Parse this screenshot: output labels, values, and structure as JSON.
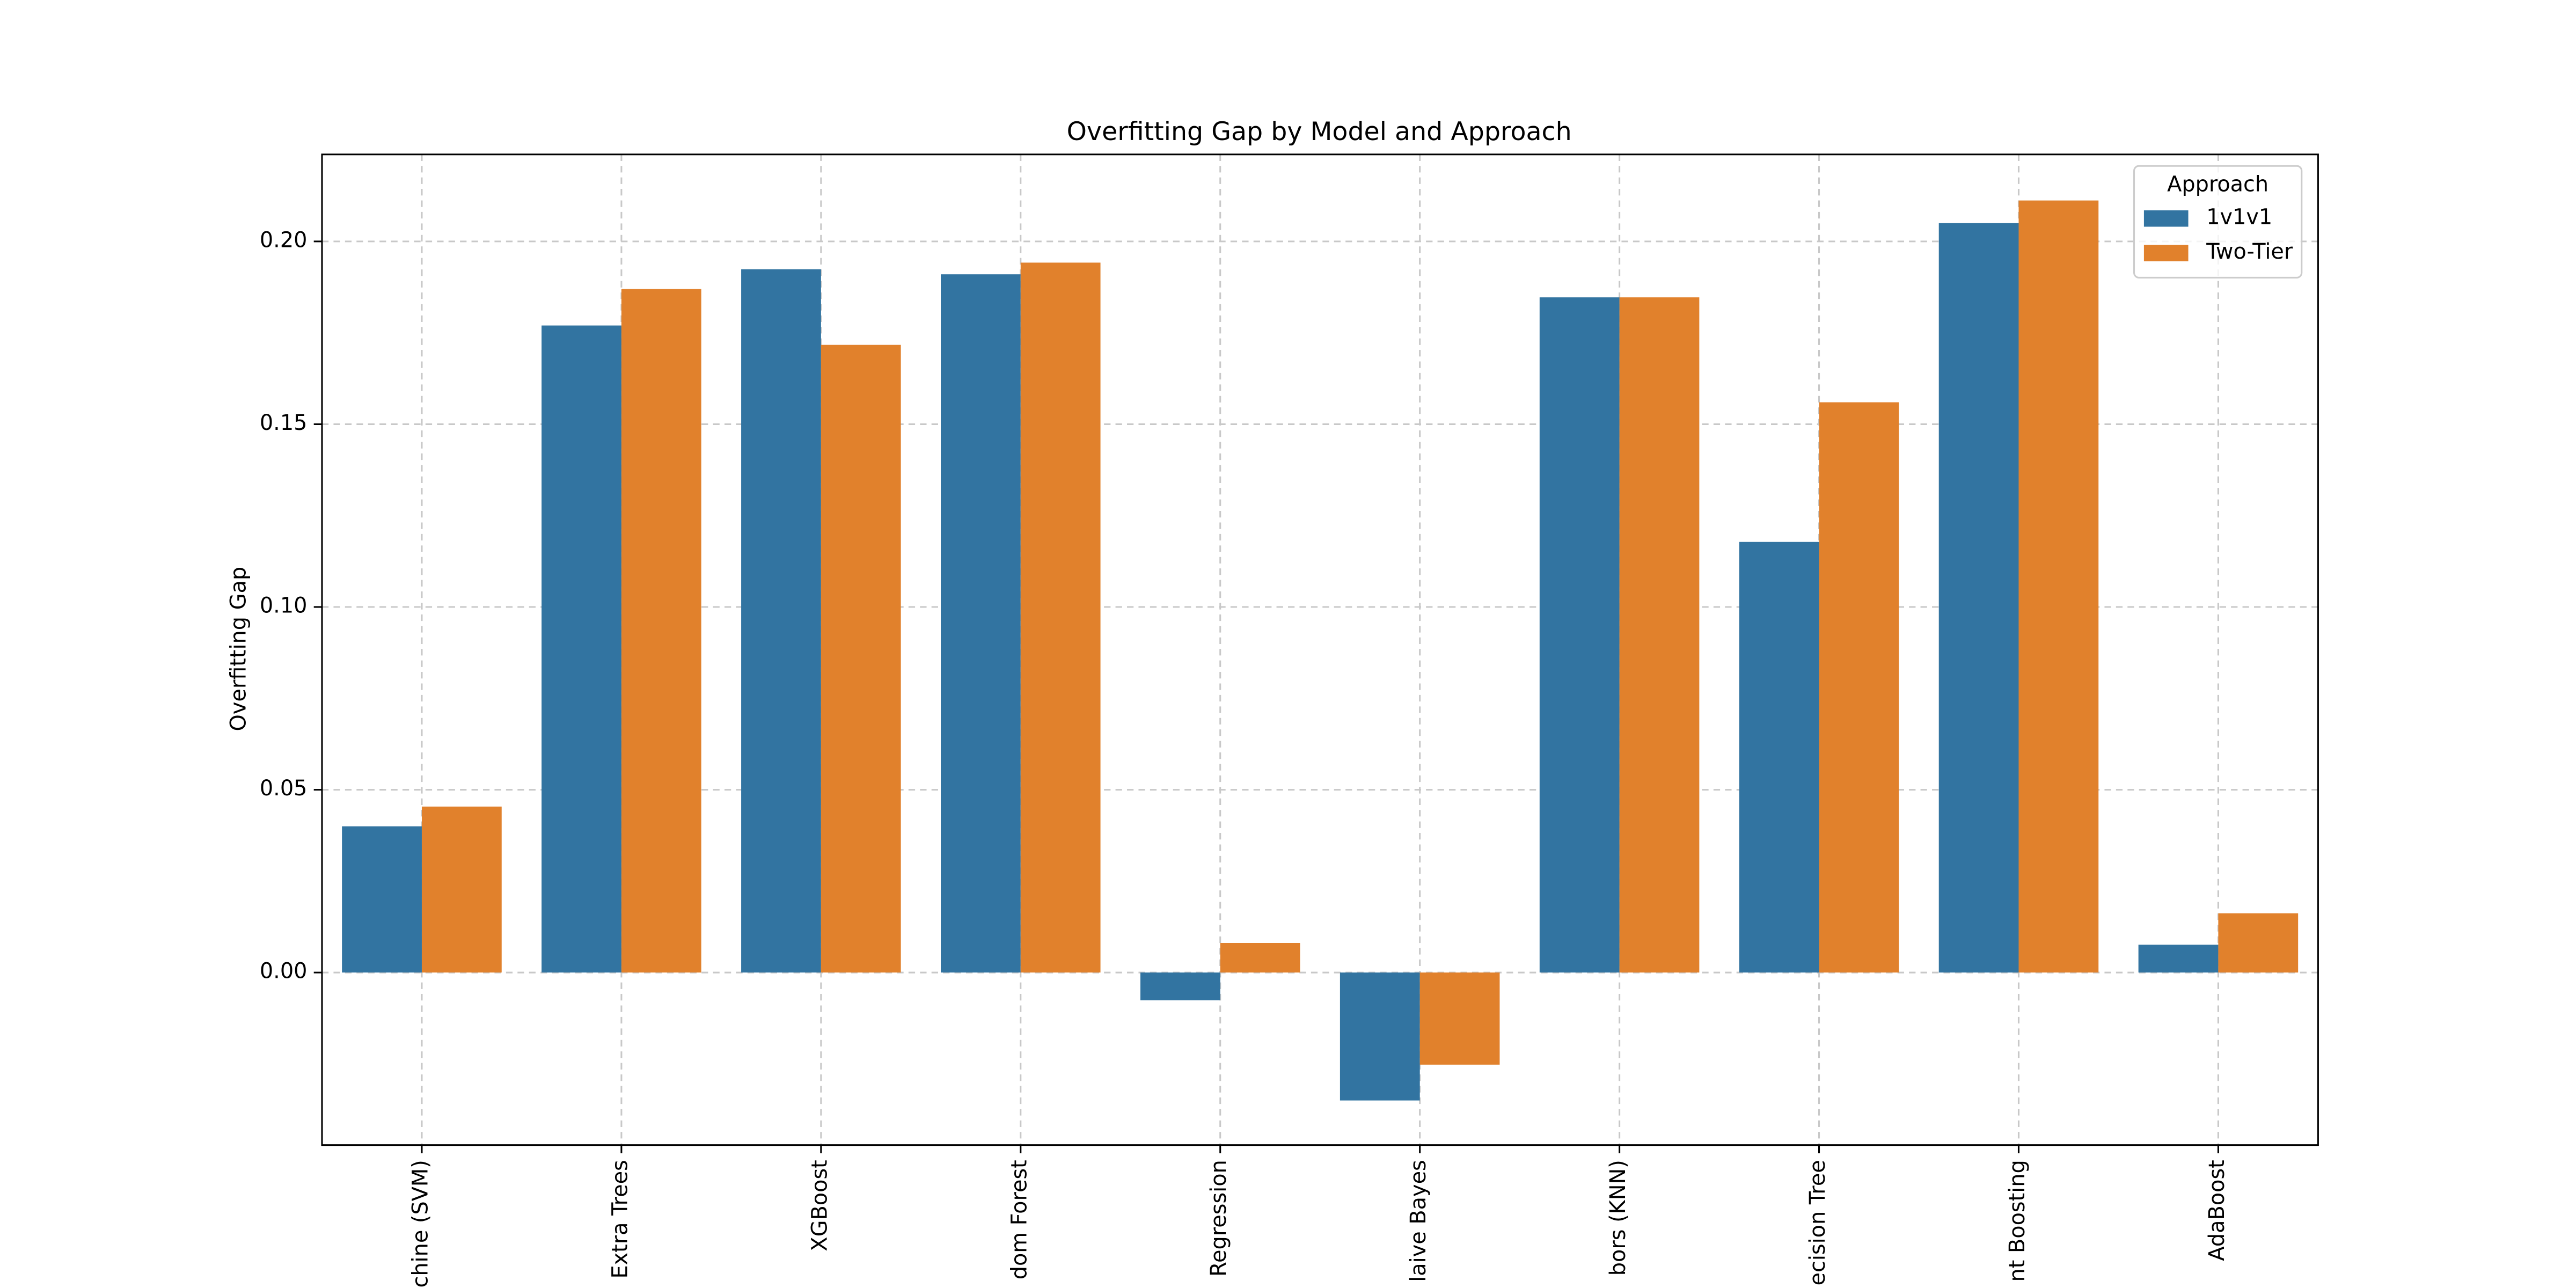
{
  "chart_data": {
    "type": "bar",
    "title": "Overfitting Gap by Model and Approach",
    "y_label": "Overfitting Gap",
    "categories": [
      "chine (SVM)",
      "Extra Trees",
      "XGBoost",
      "dom Forest",
      "Regression",
      "laive Bayes",
      "bors (KNN)",
      "ecision Tree",
      "nt Boosting",
      "AdaBoost"
    ],
    "series": [
      {
        "name": "1v1v1",
        "color": "#3274a1",
        "values": [
          0.04,
          0.177,
          0.1924,
          0.191,
          -0.0076,
          -0.035,
          0.1847,
          0.1178,
          0.205,
          0.0076
        ]
      },
      {
        "name": "Two-Tier",
        "color": "#e1812c",
        "values": [
          0.0454,
          0.187,
          0.1717,
          0.1942,
          0.0081,
          -0.0252,
          0.1847,
          0.156,
          0.2112,
          0.0162
        ]
      }
    ],
    "ylim": [
      -0.0472,
      0.2238
    ],
    "yticks": [
      {
        "value": 0,
        "label": "0.00"
      },
      {
        "value": 0.05,
        "label": "0.05"
      },
      {
        "value": 0.1,
        "label": "0.10"
      },
      {
        "value": 0.15,
        "label": "0.15"
      },
      {
        "value": 0.2,
        "label": "0.20"
      }
    ],
    "grid": true,
    "legend_title": "Approach",
    "legend_position": "upper-right"
  }
}
